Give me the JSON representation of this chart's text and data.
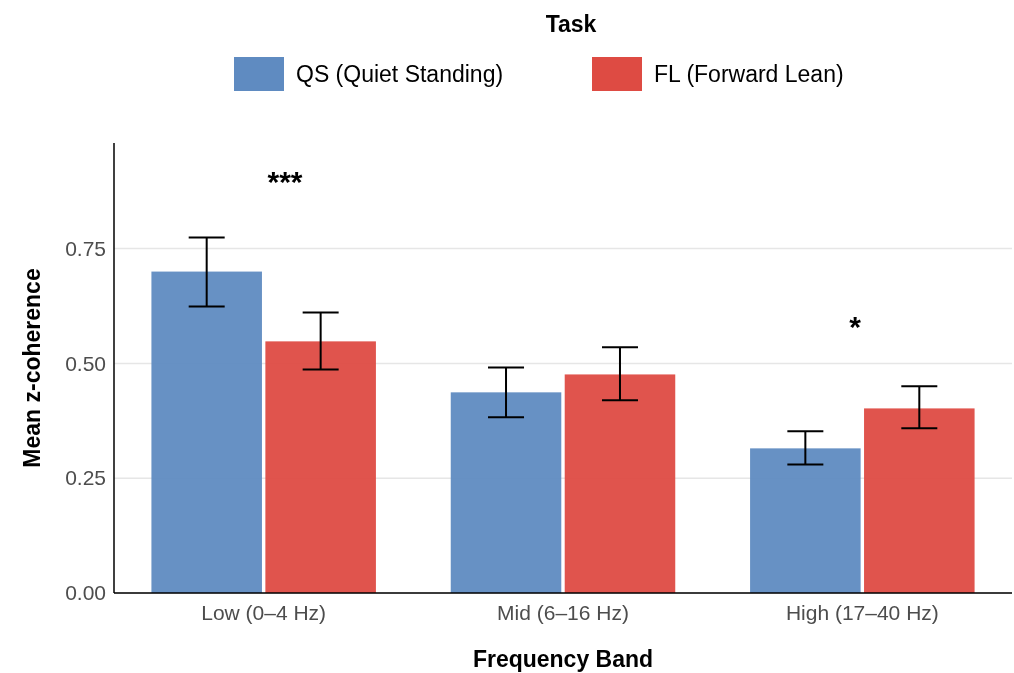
{
  "chart_data": {
    "type": "bar",
    "xlabel": "Frequency Band",
    "ylabel": "Mean z-coherence",
    "legend_title": "Task",
    "legend": "top",
    "categories": [
      "Low (0–4 Hz)",
      "Mid (6–16 Hz)",
      "High (17–40 Hz)"
    ],
    "series": [
      {
        "name": "QS (Quiet Standing)",
        "color": "#5f8bc1",
        "values": [
          0.7,
          0.437,
          0.315
        ],
        "errors": [
          [
            0.624,
            0.774
          ],
          [
            0.383,
            0.491
          ],
          [
            0.28,
            0.352
          ]
        ]
      },
      {
        "name": "FL (Forward Lean)",
        "color": "#de4b43",
        "values": [
          0.548,
          0.476,
          0.402
        ],
        "errors": [
          [
            0.487,
            0.611
          ],
          [
            0.42,
            0.535
          ],
          [
            0.359,
            0.45
          ]
        ]
      }
    ],
    "ylim": [
      0,
      0.98
    ],
    "yticks": [
      {
        "value": 0,
        "label": "0.00"
      },
      {
        "value": 0.25,
        "label": "0.25"
      },
      {
        "value": 0.5,
        "label": "0.50"
      },
      {
        "value": 0.75,
        "label": "0.75"
      }
    ],
    "grid": "y",
    "annotations": [
      "***",
      "*"
    ]
  }
}
